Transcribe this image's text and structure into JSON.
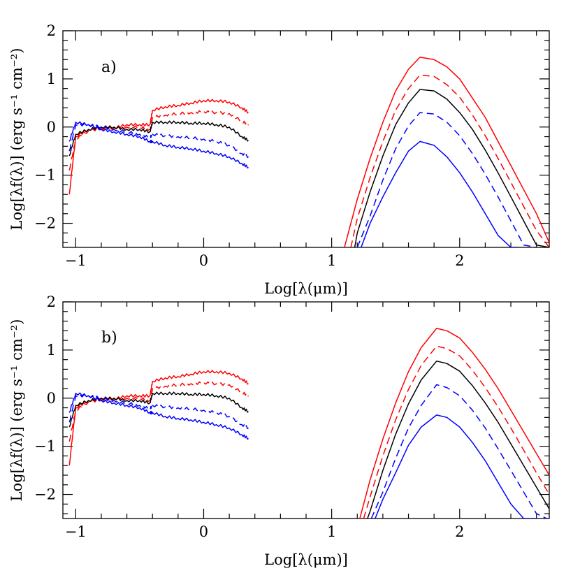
{
  "colors": {
    "red": "#ff0000",
    "black": "#000000",
    "blue": "#0000ff"
  },
  "chart_data": [
    {
      "type": "line",
      "panel_label": "a)",
      "xlabel": "Log[λ(μm)]",
      "ylabel": "Log[λf(λ)] (erg s⁻¹ cm⁻²)",
      "xlim": [
        -1.1,
        2.7
      ],
      "ylim": [
        -2.5,
        2.0
      ],
      "x_ticks": [
        -1,
        0,
        1,
        2
      ],
      "y_ticks": [
        -2,
        -1,
        0,
        1,
        2
      ],
      "x_tick_labels": [
        "−1",
        "0",
        "1",
        "2"
      ],
      "y_tick_labels": [
        "−2",
        "−1",
        "0",
        "1",
        "2"
      ],
      "series": [
        {
          "color": "red",
          "dash": "solid",
          "stellar_x": [
            -1.05,
            -1.0,
            -0.9,
            -0.8,
            -0.7,
            -0.6,
            -0.5,
            -0.42,
            -0.4,
            -0.3,
            -0.2,
            -0.1,
            0.0,
            0.1,
            0.2,
            0.3,
            0.35
          ],
          "stellar_y": [
            -1.4,
            -0.2,
            -0.05,
            0.0,
            -0.02,
            0.05,
            0.05,
            0.05,
            0.35,
            0.42,
            0.45,
            0.5,
            0.55,
            0.55,
            0.52,
            0.4,
            0.3
          ],
          "dust_x": [
            1.1,
            1.2,
            1.3,
            1.4,
            1.5,
            1.6,
            1.69,
            1.8,
            1.9,
            2.0,
            2.1,
            2.2,
            2.3,
            2.4,
            2.5,
            2.6,
            2.7
          ],
          "dust_y": [
            -2.5,
            -1.5,
            -0.65,
            0.1,
            0.75,
            1.2,
            1.45,
            1.4,
            1.25,
            1.0,
            0.6,
            0.2,
            -0.3,
            -0.8,
            -1.3,
            -1.8,
            -2.4
          ]
        },
        {
          "color": "red",
          "dash": "dashed",
          "stellar_x": [
            -1.05,
            -1.0,
            -0.9,
            -0.8,
            -0.7,
            -0.6,
            -0.5,
            -0.42,
            -0.4,
            -0.3,
            -0.2,
            -0.1,
            0.0,
            0.1,
            0.2,
            0.3,
            0.35
          ],
          "stellar_y": [
            -0.9,
            -0.25,
            -0.08,
            -0.03,
            -0.02,
            0.0,
            0.0,
            -0.05,
            0.2,
            0.25,
            0.28,
            0.3,
            0.32,
            0.3,
            0.28,
            0.12,
            0.05
          ],
          "dust_x": [
            1.15,
            1.2,
            1.3,
            1.4,
            1.5,
            1.6,
            1.69,
            1.8,
            1.9,
            2.0,
            2.1,
            2.2,
            2.3,
            2.4,
            2.5,
            2.6,
            2.7
          ],
          "dust_y": [
            -2.5,
            -1.9,
            -1.05,
            -0.3,
            0.35,
            0.8,
            1.08,
            1.05,
            0.88,
            0.62,
            0.25,
            -0.18,
            -0.65,
            -1.15,
            -1.65,
            -2.15,
            -2.5
          ]
        },
        {
          "color": "black",
          "dash": "solid",
          "stellar_x": [
            -1.05,
            -1.0,
            -0.9,
            -0.8,
            -0.7,
            -0.6,
            -0.5,
            -0.42,
            -0.4,
            -0.3,
            -0.2,
            -0.1,
            0.0,
            0.1,
            0.2,
            0.3,
            0.35
          ],
          "stellar_y": [
            -0.6,
            -0.15,
            -0.05,
            0.0,
            0.0,
            -0.05,
            -0.05,
            -0.1,
            0.1,
            0.1,
            0.1,
            0.08,
            0.08,
            0.05,
            0.0,
            -0.2,
            -0.28
          ],
          "dust_x": [
            1.18,
            1.2,
            1.3,
            1.4,
            1.5,
            1.6,
            1.69,
            1.8,
            1.9,
            2.0,
            2.1,
            2.2,
            2.3,
            2.4,
            2.5,
            2.6,
            2.7
          ],
          "dust_y": [
            -2.5,
            -2.2,
            -1.35,
            -0.6,
            0.05,
            0.5,
            0.78,
            0.75,
            0.58,
            0.3,
            -0.05,
            -0.48,
            -0.95,
            -1.45,
            -1.95,
            -2.45,
            -2.5
          ]
        },
        {
          "color": "blue",
          "dash": "dashed",
          "stellar_x": [
            -1.05,
            -1.0,
            -0.9,
            -0.8,
            -0.7,
            -0.6,
            -0.5,
            -0.42,
            -0.4,
            -0.3,
            -0.2,
            -0.1,
            0.0,
            0.1,
            0.2,
            0.3,
            0.35
          ],
          "stellar_y": [
            -0.5,
            0.05,
            0.05,
            0.0,
            -0.05,
            -0.1,
            -0.15,
            -0.22,
            -0.15,
            -0.18,
            -0.2,
            -0.22,
            -0.25,
            -0.3,
            -0.38,
            -0.55,
            -0.62
          ],
          "dust_x": [
            1.2,
            1.3,
            1.4,
            1.5,
            1.6,
            1.69,
            1.8,
            1.9,
            2.0,
            2.1,
            2.2,
            2.3,
            2.4,
            2.5,
            2.6
          ],
          "dust_y": [
            -2.5,
            -1.85,
            -1.1,
            -0.45,
            0.02,
            0.3,
            0.27,
            0.1,
            -0.18,
            -0.55,
            -0.98,
            -1.45,
            -1.95,
            -2.45,
            -2.5
          ]
        },
        {
          "color": "blue",
          "dash": "solid",
          "stellar_x": [
            -1.05,
            -1.0,
            -0.9,
            -0.8,
            -0.7,
            -0.6,
            -0.5,
            -0.42,
            -0.4,
            -0.3,
            -0.2,
            -0.1,
            0.0,
            0.1,
            0.2,
            0.3,
            0.35
          ],
          "stellar_y": [
            -0.3,
            0.1,
            0.05,
            -0.05,
            -0.1,
            -0.15,
            -0.2,
            -0.3,
            -0.3,
            -0.38,
            -0.42,
            -0.45,
            -0.5,
            -0.55,
            -0.62,
            -0.76,
            -0.84
          ],
          "dust_x": [
            1.23,
            1.3,
            1.4,
            1.5,
            1.6,
            1.69,
            1.8,
            1.9,
            2.0,
            2.1,
            2.2,
            2.3,
            2.4,
            2.45
          ],
          "dust_y": [
            -2.5,
            -2.0,
            -1.45,
            -0.95,
            -0.5,
            -0.3,
            -0.38,
            -0.62,
            -0.95,
            -1.35,
            -1.8,
            -2.25,
            -2.5,
            -2.5
          ]
        }
      ]
    },
    {
      "type": "line",
      "panel_label": "b)",
      "xlabel": "Log[λ(μm)]",
      "ylabel": "Log[λf(λ)] (erg s⁻¹ cm⁻²)",
      "xlim": [
        -1.1,
        2.7
      ],
      "ylim": [
        -2.5,
        2.0
      ],
      "x_ticks": [
        -1,
        0,
        1,
        2
      ],
      "y_ticks": [
        -2,
        -1,
        0,
        1,
        2
      ],
      "x_tick_labels": [
        "−1",
        "0",
        "1",
        "2"
      ],
      "y_tick_labels": [
        "−2",
        "−1",
        "0",
        "1",
        "2"
      ],
      "series": [
        {
          "color": "red",
          "dash": "solid",
          "stellar_x": [
            -1.05,
            -1.0,
            -0.9,
            -0.8,
            -0.7,
            -0.6,
            -0.5,
            -0.42,
            -0.4,
            -0.3,
            -0.2,
            -0.1,
            0.0,
            0.1,
            0.2,
            0.3,
            0.35
          ],
          "stellar_y": [
            -1.4,
            -0.2,
            -0.05,
            0.0,
            -0.02,
            0.05,
            0.05,
            0.05,
            0.35,
            0.42,
            0.45,
            0.5,
            0.55,
            0.55,
            0.52,
            0.4,
            0.3
          ],
          "dust_x": [
            1.22,
            1.3,
            1.4,
            1.5,
            1.6,
            1.7,
            1.82,
            1.9,
            2.0,
            2.1,
            2.2,
            2.3,
            2.4,
            2.5,
            2.6,
            2.7
          ],
          "dust_y": [
            -2.5,
            -1.7,
            -0.85,
            -0.1,
            0.55,
            1.05,
            1.45,
            1.4,
            1.25,
            0.95,
            0.6,
            0.2,
            -0.25,
            -0.7,
            -1.15,
            -1.6
          ]
        },
        {
          "color": "red",
          "dash": "dashed",
          "stellar_x": [
            -1.05,
            -1.0,
            -0.9,
            -0.8,
            -0.7,
            -0.6,
            -0.5,
            -0.42,
            -0.4,
            -0.3,
            -0.2,
            -0.1,
            0.0,
            0.1,
            0.2,
            0.3,
            0.35
          ],
          "stellar_y": [
            -0.9,
            -0.25,
            -0.08,
            -0.03,
            -0.02,
            0.0,
            0.0,
            -0.05,
            0.2,
            0.25,
            0.28,
            0.3,
            0.32,
            0.3,
            0.28,
            0.12,
            0.05
          ],
          "dust_x": [
            1.25,
            1.3,
            1.4,
            1.5,
            1.6,
            1.7,
            1.82,
            1.9,
            2.0,
            2.1,
            2.2,
            2.3,
            2.4,
            2.5,
            2.6,
            2.7
          ],
          "dust_y": [
            -2.5,
            -2.05,
            -1.2,
            -0.45,
            0.18,
            0.68,
            1.08,
            1.03,
            0.88,
            0.58,
            0.22,
            -0.18,
            -0.62,
            -1.08,
            -1.55,
            -2.0
          ]
        },
        {
          "color": "black",
          "dash": "solid",
          "stellar_x": [
            -1.05,
            -1.0,
            -0.9,
            -0.8,
            -0.7,
            -0.6,
            -0.5,
            -0.42,
            -0.4,
            -0.3,
            -0.2,
            -0.1,
            0.0,
            0.1,
            0.2,
            0.3,
            0.35
          ],
          "stellar_y": [
            -0.6,
            -0.15,
            -0.05,
            0.0,
            0.0,
            -0.05,
            -0.05,
            -0.1,
            0.1,
            0.1,
            0.1,
            0.08,
            0.08,
            0.05,
            0.0,
            -0.2,
            -0.28
          ],
          "dust_x": [
            1.28,
            1.3,
            1.4,
            1.5,
            1.6,
            1.7,
            1.82,
            1.9,
            2.0,
            2.1,
            2.2,
            2.3,
            2.4,
            2.5,
            2.6,
            2.7
          ],
          "dust_y": [
            -2.5,
            -2.35,
            -1.5,
            -0.75,
            -0.12,
            0.38,
            0.77,
            0.72,
            0.56,
            0.26,
            -0.1,
            -0.5,
            -0.95,
            -1.4,
            -1.85,
            -2.3
          ]
        },
        {
          "color": "blue",
          "dash": "dashed",
          "stellar_x": [
            -1.05,
            -1.0,
            -0.9,
            -0.8,
            -0.7,
            -0.6,
            -0.5,
            -0.42,
            -0.4,
            -0.3,
            -0.2,
            -0.1,
            0.0,
            0.1,
            0.2,
            0.3,
            0.35
          ],
          "stellar_y": [
            -0.5,
            0.05,
            0.05,
            0.0,
            -0.05,
            -0.1,
            -0.15,
            -0.22,
            -0.15,
            -0.18,
            -0.2,
            -0.22,
            -0.25,
            -0.3,
            -0.38,
            -0.55,
            -0.62
          ],
          "dust_x": [
            1.31,
            1.4,
            1.5,
            1.6,
            1.7,
            1.82,
            1.9,
            2.0,
            2.1,
            2.2,
            2.3,
            2.4,
            2.5,
            2.6,
            2.68
          ],
          "dust_y": [
            -2.5,
            -1.95,
            -1.25,
            -0.62,
            -0.15,
            0.28,
            0.22,
            0.05,
            -0.25,
            -0.62,
            -1.05,
            -1.5,
            -1.95,
            -2.4,
            -2.5
          ]
        },
        {
          "color": "blue",
          "dash": "solid",
          "stellar_x": [
            -1.05,
            -1.0,
            -0.9,
            -0.8,
            -0.7,
            -0.6,
            -0.5,
            -0.42,
            -0.4,
            -0.3,
            -0.2,
            -0.1,
            0.0,
            0.1,
            0.2,
            0.3,
            0.35
          ],
          "stellar_y": [
            -0.3,
            0.1,
            0.05,
            -0.05,
            -0.1,
            -0.15,
            -0.2,
            -0.3,
            -0.3,
            -0.38,
            -0.42,
            -0.45,
            -0.5,
            -0.55,
            -0.62,
            -0.76,
            -0.84
          ],
          "dust_x": [
            1.34,
            1.4,
            1.5,
            1.6,
            1.7,
            1.82,
            1.9,
            2.0,
            2.1,
            2.2,
            2.3,
            2.4,
            2.5,
            2.6
          ],
          "dust_y": [
            -2.5,
            -2.1,
            -1.55,
            -0.98,
            -0.6,
            -0.35,
            -0.4,
            -0.6,
            -0.92,
            -1.3,
            -1.75,
            -2.2,
            -2.5,
            -2.5
          ]
        }
      ]
    }
  ]
}
